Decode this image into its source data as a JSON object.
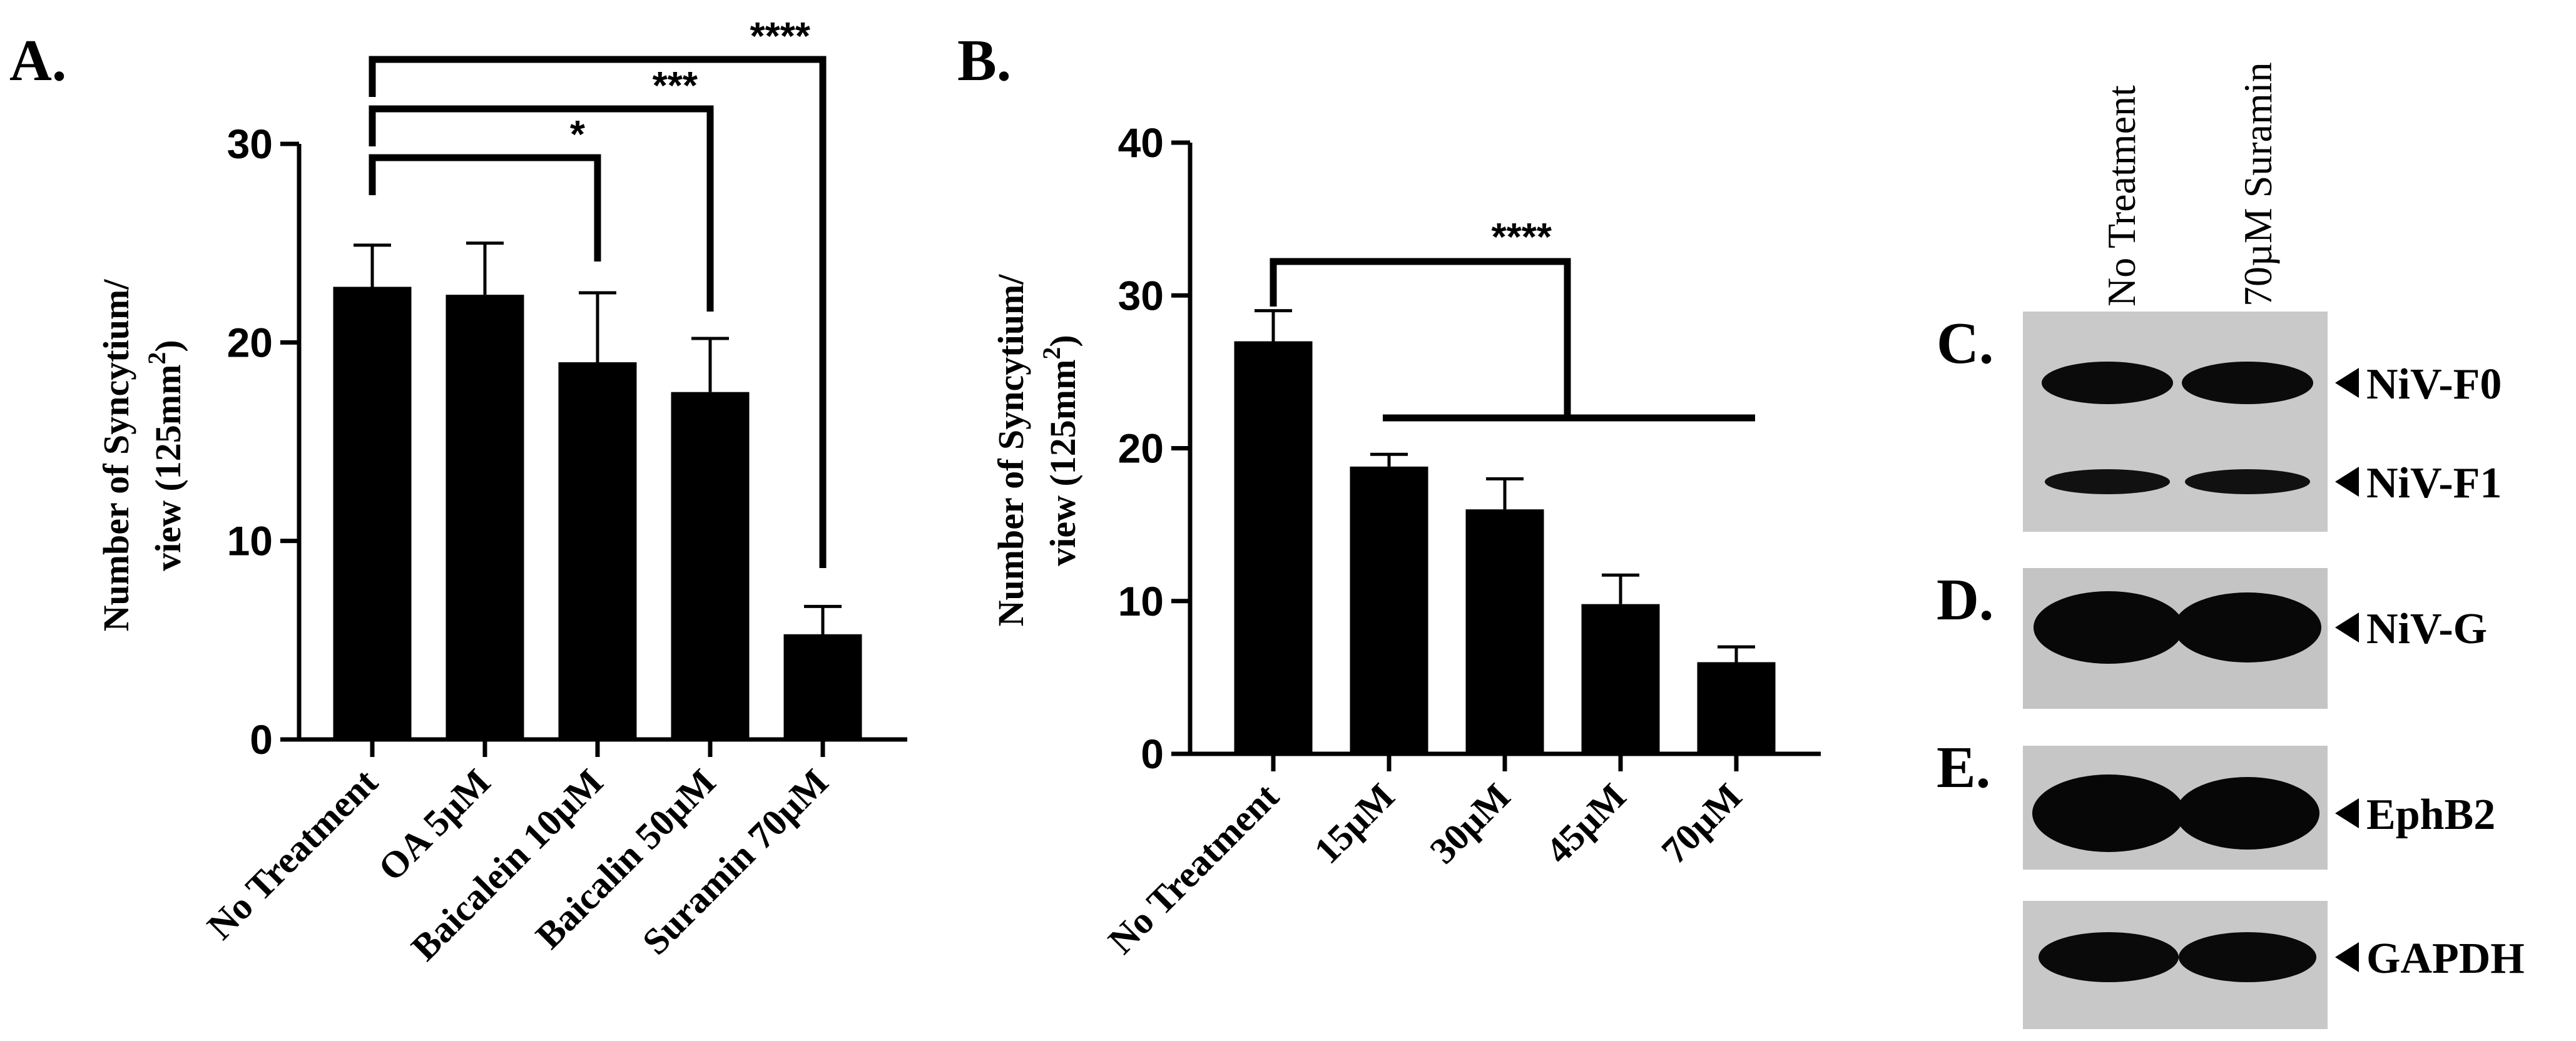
{
  "chart_data": [
    {
      "panel": "A.",
      "type": "bar",
      "categories": [
        "No Treatment",
        "OA 5µM",
        "Baicalein 10µM",
        "Baicalin 50µM",
        "Suramin 70µM"
      ],
      "values": [
        22.8,
        22.4,
        19.0,
        17.5,
        5.3
      ],
      "error": [
        2.1,
        2.6,
        3.5,
        2.7,
        1.4
      ],
      "ylabel": "Number of  Syncytium/",
      "ylabel2": "view (125mm",
      "ylabel_sup": "2",
      "ylabel_close": ")",
      "ylim": [
        0,
        30
      ],
      "yticks": [
        "0",
        "10",
        "20",
        "30"
      ],
      "significance": [
        {
          "label": "*",
          "from": "No Treatment",
          "to": "Baicalein 10µM"
        },
        {
          "label": "***",
          "from": "No Treatment",
          "to": "Baicalin 50µM"
        },
        {
          "label": "****",
          "from": "No Treatment",
          "to": "Suramin 70µM"
        }
      ]
    },
    {
      "panel": "B.",
      "type": "bar",
      "categories": [
        "No Treatment",
        "15µM",
        "30µM",
        "45µM",
        "70µM"
      ],
      "values": [
        27.0,
        18.8,
        16.0,
        9.8,
        6.0
      ],
      "error": [
        2.0,
        0.8,
        2.0,
        1.9,
        1.0
      ],
      "ylabel": "Number of  Syncytium/",
      "ylabel2": "view (125mm",
      "ylabel_sup": "2",
      "ylabel_close": ")",
      "ylim": [
        0,
        40
      ],
      "yticks": [
        "0",
        "10",
        "20",
        "30",
        "40"
      ],
      "significance": [
        {
          "label": "****",
          "from": "No Treatment",
          "to": "15µM–70µM"
        }
      ]
    }
  ],
  "blots": {
    "lanes": [
      "No Treatment",
      "70µM Suramin"
    ],
    "panels": [
      {
        "letter": "C.",
        "bands": [
          "NiV-F0",
          "NiV-F1"
        ]
      },
      {
        "letter": "D.",
        "bands": [
          "NiV-G"
        ]
      },
      {
        "letter": "E.",
        "bands": [
          "EphB2"
        ]
      },
      {
        "letter": "",
        "bands": [
          "GAPDH"
        ]
      }
    ]
  }
}
